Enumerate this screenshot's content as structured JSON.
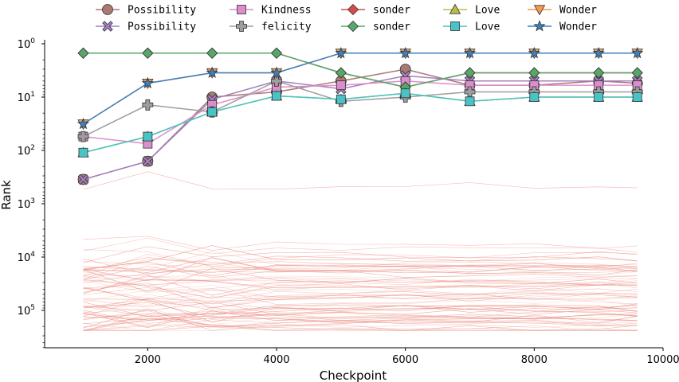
{
  "chart_data": {
    "type": "line",
    "title": "",
    "xlabel": "Checkpoint",
    "ylabel": "Rank",
    "xlim": [
      400,
      10000
    ],
    "ylim_rank": [
      1,
      500000
    ],
    "y_axis": "log, inverted (rank 1 at top)",
    "x_ticks": [
      2000,
      4000,
      6000,
      8000,
      10000
    ],
    "x_tick_labels": [
      "2000",
      "4000",
      "6000",
      "8000",
      "10000"
    ],
    "y_ticks": [
      1,
      10,
      100,
      1000,
      10000,
      100000
    ],
    "y_tick_labels": [
      {
        "base": "10",
        "exp": "0"
      },
      {
        "base": "10",
        "exp": "1"
      },
      {
        "base": "10",
        "exp": "2"
      },
      {
        "base": "10",
        "exp": "3"
      },
      {
        "base": "10",
        "exp": "4"
      },
      {
        "base": "10",
        "exp": "5"
      }
    ],
    "x": [
      1000,
      2000,
      3000,
      4000,
      5000,
      6000,
      7000,
      8000,
      9000,
      9600
    ],
    "legend": {
      "position": "top",
      "columns": 5
    },
    "series": [
      {
        "name": " Possibility",
        "color": "#a97a72",
        "marker": "circle",
        "values": [
          350,
          160,
          10,
          8,
          5,
          3,
          6,
          6,
          5,
          5.5
        ]
      },
      {
        "name": "Possibility",
        "color": "#a57fc4",
        "marker": "x",
        "values": [
          350,
          160,
          11,
          5,
          7,
          4,
          5,
          5,
          5,
          5
        ]
      },
      {
        "name": " Kindness",
        "color": "#dc8dcb",
        "marker": "square",
        "values": [
          55,
          75,
          14,
          6.5,
          6,
          5,
          6,
          6,
          6,
          6
        ]
      },
      {
        "name": " felicity",
        "color": "#9e9e9e",
        "marker": "plus",
        "values": [
          55,
          14,
          19,
          5,
          12,
          10,
          8,
          8,
          8,
          8
        ]
      },
      {
        "name": "sonder",
        "color": "#d84b4b",
        "marker": "diamond",
        "values": [
          1.5,
          1.5,
          1.5,
          1.5,
          3.5,
          6.5,
          3.5,
          3.5,
          3.5,
          3.5
        ]
      },
      {
        "name": " sonder",
        "color": "#56a868",
        "marker": "diamond",
        "values": [
          1.5,
          1.5,
          1.5,
          1.5,
          3.5,
          6.5,
          3.5,
          3.5,
          3.5,
          3.5
        ]
      },
      {
        "name": " Love",
        "color": "#b8bd4a",
        "marker": "triangle-up",
        "values": [
          110,
          55,
          19,
          9.5,
          11,
          8.5,
          12,
          10,
          10,
          10
        ]
      },
      {
        "name": "Love",
        "color": "#49c3c5",
        "marker": "square",
        "values": [
          110,
          55,
          19,
          9.5,
          11,
          8.5,
          12,
          10,
          10,
          10
        ]
      },
      {
        "name": " Wonder",
        "color": "#f49c4b",
        "marker": "triangle-down",
        "values": [
          32,
          5.5,
          3.5,
          3.5,
          1.5,
          1.5,
          1.5,
          1.5,
          1.5,
          1.5
        ]
      },
      {
        "name": "Wonder",
        "color": "#3f7fbf",
        "marker": "star",
        "values": [
          32,
          5.5,
          3.5,
          3.5,
          1.5,
          1.5,
          1.5,
          1.5,
          1.5,
          1.5
        ]
      }
    ],
    "background_lines": {
      "color": "#e87c6e",
      "count": 70,
      "x": [
        1000,
        2000,
        3000,
        4000,
        5000,
        6000,
        7000,
        8000,
        9000,
        9600
      ],
      "description": "many faint rank trajectories, mostly ranks 10^4 to 2.5x10^5, one near 500"
    }
  }
}
